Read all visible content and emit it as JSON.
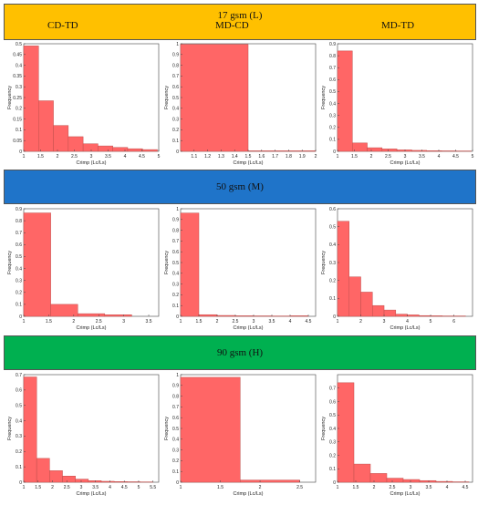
{
  "bands": [
    {
      "title": "17 gsm (L)",
      "color": "#FFC000",
      "headers": [
        "CD-TD",
        "MD-CD",
        "MD-TD"
      ]
    },
    {
      "title": "50 gsm (M)",
      "color": "#1F74C9",
      "headers": []
    },
    {
      "title": "90 gsm (H)",
      "color": "#00B050",
      "headers": []
    }
  ],
  "colors": {
    "bar_fill": "#FF6666",
    "bar_stroke": "#C0504D"
  },
  "chart_data": [
    {
      "type": "bar",
      "name": "17gsm-CD-TD",
      "xlabel": "Crimp (Lc/Ls)",
      "ylabel": "Frequency",
      "xlim": [
        1,
        5
      ],
      "ylim": [
        0,
        0.5
      ],
      "xticks": [
        1,
        1.5,
        2,
        2.5,
        3,
        3.5,
        4,
        4.5,
        5
      ],
      "xticklabels": [
        "1",
        "1.5",
        "2",
        "2.5",
        "3",
        "3.5",
        "4",
        "4.5",
        "5"
      ],
      "yticks": [
        0,
        0.05,
        0.1,
        0.15,
        0.2,
        0.25,
        0.3,
        0.35,
        0.4,
        0.45,
        0.5
      ],
      "yticklabels": [
        "0",
        "0.05",
        "0.1",
        "0.15",
        "0.2",
        "0.25",
        "0.3",
        "0.35",
        "0.4",
        "0.45",
        "0.5"
      ],
      "bins": [
        [
          1.0,
          1.44
        ],
        [
          1.44,
          1.88
        ],
        [
          1.88,
          2.32
        ],
        [
          2.32,
          2.76
        ],
        [
          2.76,
          3.2
        ],
        [
          3.2,
          3.64
        ],
        [
          3.64,
          4.08
        ],
        [
          4.08,
          4.52
        ],
        [
          4.52,
          4.96
        ]
      ],
      "values": [
        0.49,
        0.235,
        0.12,
        0.068,
        0.035,
        0.025,
        0.018,
        0.012,
        0.008
      ]
    },
    {
      "type": "bar",
      "name": "17gsm-MD-CD",
      "xlabel": "Crimp (Lc/Ls)",
      "ylabel": "Frequency",
      "xlim": [
        1,
        2
      ],
      "ylim": [
        0,
        1
      ],
      "xticks": [
        1.1,
        1.2,
        1.3,
        1.4,
        1.5,
        1.6,
        1.7,
        1.8,
        1.9,
        2
      ],
      "xticklabels": [
        "1.1",
        "1.2",
        "1.3",
        "1.4",
        "1.5",
        "1.6",
        "1.7",
        "1.8",
        "1.9",
        "2"
      ],
      "yticks": [
        0,
        0.1,
        0.2,
        0.3,
        0.4,
        0.5,
        0.6,
        0.7,
        0.8,
        0.9,
        1
      ],
      "yticklabels": [
        "0",
        "0.1",
        "0.2",
        "0.3",
        "0.4",
        "0.5",
        "0.6",
        "0.7",
        "0.8",
        "0.9",
        "1"
      ],
      "bins": [
        [
          1.0,
          1.5
        ],
        [
          1.5,
          2.0
        ]
      ],
      "values": [
        0.995,
        0.005
      ]
    },
    {
      "type": "bar",
      "name": "17gsm-MD-TD",
      "xlabel": "Crimp (Lc/Ls)",
      "ylabel": "Frequency",
      "xlim": [
        1,
        5
      ],
      "ylim": [
        0,
        0.9
      ],
      "xticks": [
        1,
        1.5,
        2,
        2.5,
        3,
        3.5,
        4,
        4.5,
        5
      ],
      "xticklabels": [
        "1",
        "1.5",
        "2",
        "2.5",
        "3",
        "3.5",
        "4",
        "4.5",
        "5"
      ],
      "yticks": [
        0,
        0.1,
        0.2,
        0.3,
        0.4,
        0.5,
        0.6,
        0.7,
        0.8,
        0.9
      ],
      "yticklabels": [
        "0",
        "0.1",
        "0.2",
        "0.3",
        "0.4",
        "0.5",
        "0.6",
        "0.7",
        "0.8",
        "0.9"
      ],
      "bins": [
        [
          1.0,
          1.44
        ],
        [
          1.44,
          1.88
        ],
        [
          1.88,
          2.32
        ],
        [
          2.32,
          2.76
        ],
        [
          2.76,
          3.2
        ],
        [
          3.2,
          3.64
        ],
        [
          3.64,
          4.08
        ],
        [
          4.08,
          4.52
        ],
        [
          4.52,
          4.96
        ]
      ],
      "values": [
        0.84,
        0.07,
        0.03,
        0.02,
        0.012,
        0.008,
        0.005,
        0.004,
        0.003
      ]
    },
    {
      "type": "bar",
      "name": "50gsm-CD-TD",
      "xlabel": "Crimp (Lc/Ls)",
      "ylabel": "Frequency",
      "xlim": [
        1,
        3.7
      ],
      "ylim": [
        0,
        0.9
      ],
      "xticks": [
        1,
        1.5,
        2,
        2.5,
        3,
        3.5
      ],
      "xticklabels": [
        "1",
        "1.5",
        "2",
        "2.5",
        "3",
        "3.5"
      ],
      "yticks": [
        0,
        0.1,
        0.2,
        0.3,
        0.4,
        0.5,
        0.6,
        0.7,
        0.8,
        0.9
      ],
      "yticklabels": [
        "0",
        "0.1",
        "0.2",
        "0.3",
        "0.4",
        "0.5",
        "0.6",
        "0.7",
        "0.8",
        "0.9"
      ],
      "bins": [
        [
          1.0,
          1.54
        ],
        [
          1.54,
          2.08
        ],
        [
          2.08,
          2.62
        ],
        [
          2.62,
          3.16
        ]
      ],
      "values": [
        0.865,
        0.1,
        0.022,
        0.013
      ]
    },
    {
      "type": "bar",
      "name": "50gsm-MD-CD",
      "xlabel": "Crimp (Lc/Ls)",
      "ylabel": "Frequency",
      "xlim": [
        1,
        4.7
      ],
      "ylim": [
        0,
        1
      ],
      "xticks": [
        1,
        1.5,
        2,
        2.5,
        3,
        3.5,
        4,
        4.5
      ],
      "xticklabels": [
        "1",
        "1.5",
        "2",
        "2.5",
        "3",
        "3.5",
        "4",
        "4.5"
      ],
      "yticks": [
        0,
        0.1,
        0.2,
        0.3,
        0.4,
        0.5,
        0.6,
        0.7,
        0.8,
        0.9,
        1
      ],
      "yticklabels": [
        "0",
        "0.1",
        "0.2",
        "0.3",
        "0.4",
        "0.5",
        "0.6",
        "0.7",
        "0.8",
        "0.9",
        "1"
      ],
      "bins": [
        [
          1.0,
          1.5
        ],
        [
          1.5,
          2.0
        ],
        [
          2.0,
          2.5
        ],
        [
          2.5,
          3.0
        ],
        [
          3.0,
          3.5
        ],
        [
          3.5,
          4.0
        ],
        [
          4.0,
          4.5
        ]
      ],
      "values": [
        0.96,
        0.015,
        0.008,
        0.005,
        0.004,
        0.003,
        0.005
      ]
    },
    {
      "type": "bar",
      "name": "50gsm-MD-TD",
      "xlabel": "Crimp (Lc/Ls)",
      "ylabel": "Frequency",
      "xlim": [
        1,
        6.8
      ],
      "ylim": [
        0,
        0.6
      ],
      "xticks": [
        1,
        2,
        3,
        4,
        5,
        6
      ],
      "xticklabels": [
        "1",
        "2",
        "3",
        "4",
        "5",
        "6"
      ],
      "yticks": [
        0,
        0.1,
        0.2,
        0.3,
        0.4,
        0.5,
        0.6
      ],
      "yticklabels": [
        "0",
        "0.1",
        "0.2",
        "0.3",
        "0.4",
        "0.5",
        "0.6"
      ],
      "bins": [
        [
          1.0,
          1.5
        ],
        [
          1.5,
          2.0
        ],
        [
          2.0,
          2.5
        ],
        [
          2.5,
          3.0
        ],
        [
          3.0,
          3.5
        ],
        [
          3.5,
          4.0
        ],
        [
          4.0,
          4.5
        ],
        [
          4.5,
          5.0
        ],
        [
          5.0,
          5.5
        ],
        [
          5.5,
          6.0
        ],
        [
          6.0,
          6.5
        ]
      ],
      "values": [
        0.53,
        0.22,
        0.135,
        0.06,
        0.035,
        0.012,
        0.008,
        0.004,
        0.003,
        0.002,
        0.002
      ]
    },
    {
      "type": "bar",
      "name": "90gsm-CD-TD",
      "xlabel": "Crimp (Lc/Ls)",
      "ylabel": "Frequency",
      "xlim": [
        1,
        5.7
      ],
      "ylim": [
        0,
        0.7
      ],
      "xticks": [
        1,
        1.5,
        2,
        2.5,
        3,
        3.5,
        4,
        4.5,
        5,
        5.5
      ],
      "xticklabels": [
        "1",
        "1.5",
        "2",
        "2.5",
        "3",
        "3.5",
        "4",
        "4.5",
        "5",
        "5.5"
      ],
      "yticks": [
        0,
        0.1,
        0.2,
        0.3,
        0.4,
        0.5,
        0.6,
        0.7
      ],
      "yticklabels": [
        "0",
        "0.1",
        "0.2",
        "0.3",
        "0.4",
        "0.5",
        "0.6",
        "0.7"
      ],
      "bins": [
        [
          1.0,
          1.45
        ],
        [
          1.45,
          1.9
        ],
        [
          1.9,
          2.35
        ],
        [
          2.35,
          2.8
        ],
        [
          2.8,
          3.25
        ],
        [
          3.25,
          3.7
        ],
        [
          3.7,
          4.15
        ],
        [
          4.15,
          4.6
        ],
        [
          4.6,
          5.05
        ],
        [
          5.05,
          5.5
        ]
      ],
      "values": [
        0.685,
        0.155,
        0.075,
        0.04,
        0.02,
        0.01,
        0.006,
        0.004,
        0.003,
        0.002
      ]
    },
    {
      "type": "bar",
      "name": "90gsm-MD-CD",
      "xlabel": "Crimp (Lc/Ls)",
      "ylabel": "Frequency",
      "xlim": [
        1,
        2.7
      ],
      "ylim": [
        0,
        1
      ],
      "xticks": [
        1,
        1.5,
        2,
        2.5
      ],
      "xticklabels": [
        "1",
        "1.5",
        "2",
        "2.5"
      ],
      "yticks": [
        0,
        0.1,
        0.2,
        0.3,
        0.4,
        0.5,
        0.6,
        0.7,
        0.8,
        0.9,
        1
      ],
      "yticklabels": [
        "0",
        "0.1",
        "0.2",
        "0.3",
        "0.4",
        "0.5",
        "0.6",
        "0.7",
        "0.8",
        "0.9",
        "1"
      ],
      "bins": [
        [
          1.0,
          1.75
        ],
        [
          1.75,
          2.5
        ]
      ],
      "values": [
        0.975,
        0.02
      ]
    },
    {
      "type": "bar",
      "name": "90gsm-MD-TD",
      "xlabel": "Crimp (Lc/Ls)",
      "ylabel": "Frequency",
      "xlim": [
        1,
        4.7
      ],
      "ylim": [
        0,
        0.8
      ],
      "xticks": [
        1,
        1.5,
        2,
        2.5,
        3,
        3.5,
        4,
        4.5
      ],
      "xticklabels": [
        "1",
        "1.5",
        "2",
        "2.5",
        "3",
        "3.5",
        "4",
        "4.5"
      ],
      "yticks": [
        0,
        0.1,
        0.2,
        0.3,
        0.4,
        0.5,
        0.6,
        0.7
      ],
      "yticklabels": [
        "0",
        "0.1",
        "0.2",
        "0.3",
        "0.4",
        "0.5",
        "0.6",
        "0.7"
      ],
      "bins": [
        [
          1.0,
          1.45
        ],
        [
          1.45,
          1.9
        ],
        [
          1.9,
          2.35
        ],
        [
          2.35,
          2.8
        ],
        [
          2.8,
          3.25
        ],
        [
          3.25,
          3.7
        ],
        [
          3.7,
          4.15
        ],
        [
          4.15,
          4.6
        ]
      ],
      "values": [
        0.74,
        0.135,
        0.065,
        0.03,
        0.02,
        0.012,
        0.006,
        0.003
      ]
    }
  ]
}
